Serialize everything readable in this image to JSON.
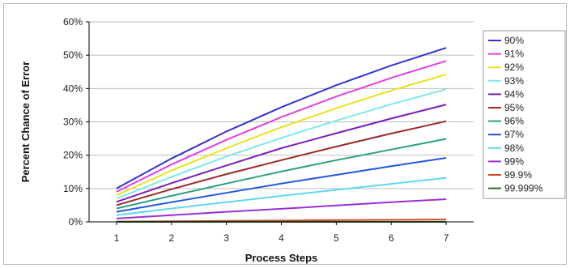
{
  "chart_data": {
    "type": "line",
    "title": "",
    "xlabel": "Process Steps",
    "ylabel": "Percent Chance of Error",
    "x": [
      1,
      2,
      3,
      4,
      5,
      6,
      7
    ],
    "xlim": [
      0.5,
      7.5
    ],
    "ylim": [
      0,
      60
    ],
    "ytick_values": [
      0,
      10,
      20,
      30,
      40,
      50,
      60
    ],
    "ytick_labels": [
      "0%",
      "10%",
      "20%",
      "30%",
      "40%",
      "50%",
      "60%"
    ],
    "xtick_labels": [
      "1",
      "2",
      "3",
      "4",
      "5",
      "6",
      "7"
    ],
    "grid": "horizontal",
    "legend_position": "right",
    "series": [
      {
        "name": "90%",
        "color": "#3333cc",
        "values": [
          10,
          19,
          27.1,
          34.4,
          41,
          46.9,
          52.2
        ]
      },
      {
        "name": "91%",
        "color": "#e040e0",
        "values": [
          9,
          17.2,
          24.6,
          31.4,
          37.6,
          43.2,
          48.3
        ]
      },
      {
        "name": "92%",
        "color": "#e8e020",
        "values": [
          8,
          15.4,
          22.1,
          28.4,
          34.1,
          39.4,
          44.2
        ]
      },
      {
        "name": "93%",
        "color": "#80e8e8",
        "values": [
          7,
          13.5,
          19.6,
          25.2,
          30.4,
          35.3,
          39.8
        ]
      },
      {
        "name": "94%",
        "color": "#7a1fb8",
        "values": [
          6,
          11.6,
          16.9,
          22.1,
          26.6,
          31,
          35.2
        ]
      },
      {
        "name": "95%",
        "color": "#9a2a2a",
        "values": [
          5,
          9.8,
          14.3,
          18.5,
          22.6,
          26.5,
          30.2
        ]
      },
      {
        "name": "96%",
        "color": "#2aa080",
        "values": [
          4,
          7.8,
          11.5,
          15.1,
          18.5,
          21.7,
          24.9
        ]
      },
      {
        "name": "97%",
        "color": "#2255dd",
        "values": [
          3,
          5.9,
          8.7,
          11.5,
          14.1,
          16.7,
          19.2
        ]
      },
      {
        "name": "98%",
        "color": "#5fd8f0",
        "values": [
          2,
          4,
          5.9,
          7.8,
          9.6,
          11.4,
          13.2
        ]
      },
      {
        "name": "99%",
        "color": "#9a2fd8",
        "values": [
          1,
          2,
          3,
          3.9,
          4.9,
          5.9,
          6.8
        ]
      },
      {
        "name": "99.9%",
        "color": "#d04a2a",
        "values": [
          0.1,
          0.2,
          0.3,
          0.4,
          0.5,
          0.6,
          0.7
        ]
      },
      {
        "name": "99.999%",
        "color": "#2f6a2f",
        "values": [
          0.001,
          0.002,
          0.003,
          0.004,
          0.005,
          0.006,
          0.007
        ]
      }
    ]
  }
}
